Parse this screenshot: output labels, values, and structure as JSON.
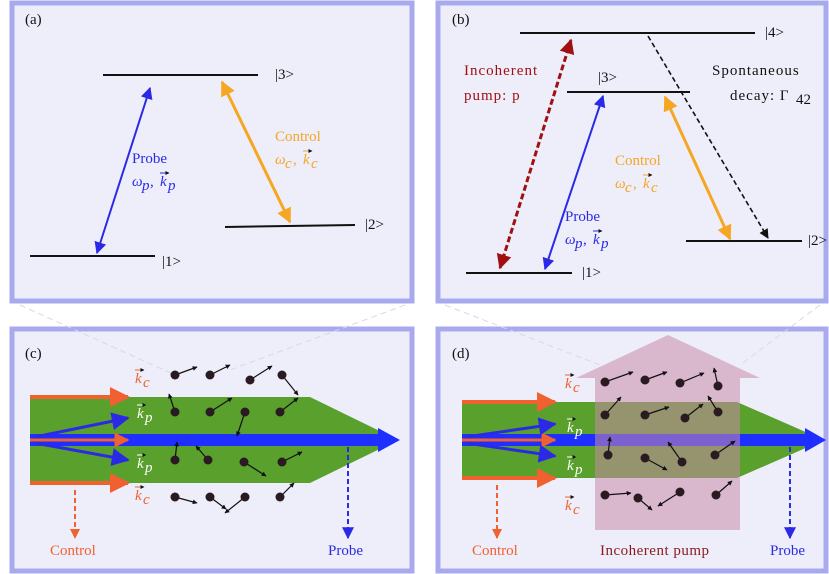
{
  "panel_a": {
    "label": "(a)",
    "levels": [
      "|3>",
      "|2>",
      "|1>"
    ],
    "probe": {
      "name": "Probe",
      "freq": {
        "symbol": "ω",
        "sub": "p"
      },
      "separator": ",",
      "wavevector": {
        "symbol": "k",
        "sub": "p"
      }
    },
    "control": {
      "name": "Control",
      "freq": {
        "symbol": "ω",
        "sub": "c"
      },
      "separator": ",",
      "wavevector": {
        "symbol": "k",
        "sub": "c"
      }
    }
  },
  "panel_b": {
    "label": "(b)",
    "levels": [
      "|4>",
      "|3>",
      "|2>",
      "|1>"
    ],
    "pump": [
      "Incoherent",
      "pump: p"
    ],
    "decay": {
      "lines": [
        "Spontaneous",
        "decay: Γ"
      ],
      "sub": "42"
    },
    "probe": {
      "name": "Probe",
      "freq": {
        "symbol": "ω",
        "sub": "p"
      },
      "separator": ",",
      "wavevector": {
        "symbol": "k",
        "sub": "p"
      }
    },
    "control": {
      "name": "Control",
      "freq": {
        "symbol": "ω",
        "sub": "c"
      },
      "separator": ",",
      "wavevector": {
        "symbol": "k",
        "sub": "c"
      }
    }
  },
  "panel_c": {
    "label": "(c)",
    "control_vector": {
      "symbol": "k",
      "sub": "c"
    },
    "probe_vector": {
      "symbol": "k",
      "sub": "p"
    },
    "control": "Control",
    "probe": "Probe"
  },
  "panel_d": {
    "label": "(d)",
    "control_vector": {
      "symbol": "k",
      "sub": "c"
    },
    "probe_vector": {
      "symbol": "k",
      "sub": "p"
    },
    "control": "Control",
    "pump": "Incoherent pump",
    "probe": "Probe"
  }
}
